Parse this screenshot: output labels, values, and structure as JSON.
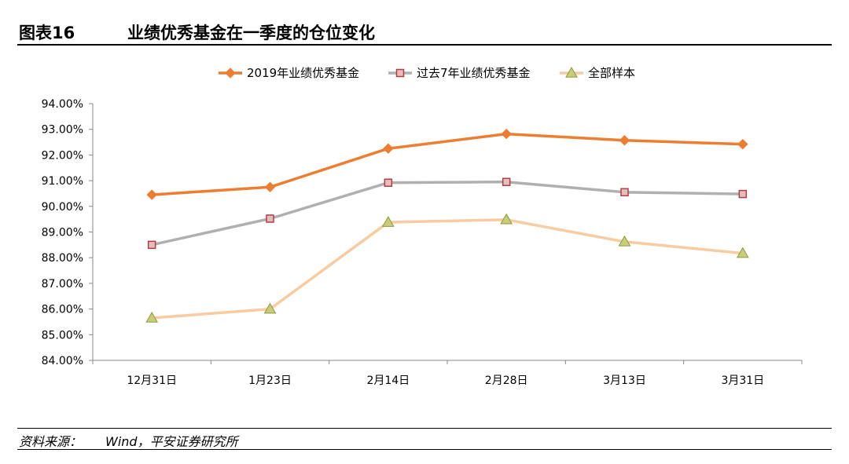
{
  "figure": {
    "number": "图表16",
    "title": "业绩优秀基金在一季度的仓位变化"
  },
  "source": {
    "label": "资料来源：",
    "text": "Wind，平安证券研究所"
  },
  "chart_data": {
    "type": "line",
    "categories": [
      "12月31日",
      "1月23日",
      "2月14日",
      "2月28日",
      "3月13日",
      "3月31日"
    ],
    "ylim": [
      84.0,
      94.0
    ],
    "ytick_step": 1.0,
    "ytick_format": "percent_2dp",
    "grid": false,
    "legend_position": "top",
    "series": [
      {
        "name": "2019年业绩优秀基金",
        "values": [
          90.45,
          90.75,
          92.25,
          92.82,
          92.57,
          92.42
        ],
        "color": "#ED7D31",
        "marker": "diamond"
      },
      {
        "name": "过去7年业绩优秀基金",
        "values": [
          88.5,
          89.52,
          90.92,
          90.95,
          90.55,
          90.48
        ],
        "color": "#B0B0B0",
        "marker": "square",
        "marker_fill": "#E6BDBD",
        "marker_edge": "#B04040"
      },
      {
        "name": "全部样本",
        "values": [
          85.65,
          86.0,
          89.38,
          89.48,
          88.62,
          88.17
        ],
        "color": "#F8CBA0",
        "marker": "triangle",
        "marker_fill": "#C9CC7A",
        "marker_edge": "#8C9A3A"
      }
    ]
  }
}
